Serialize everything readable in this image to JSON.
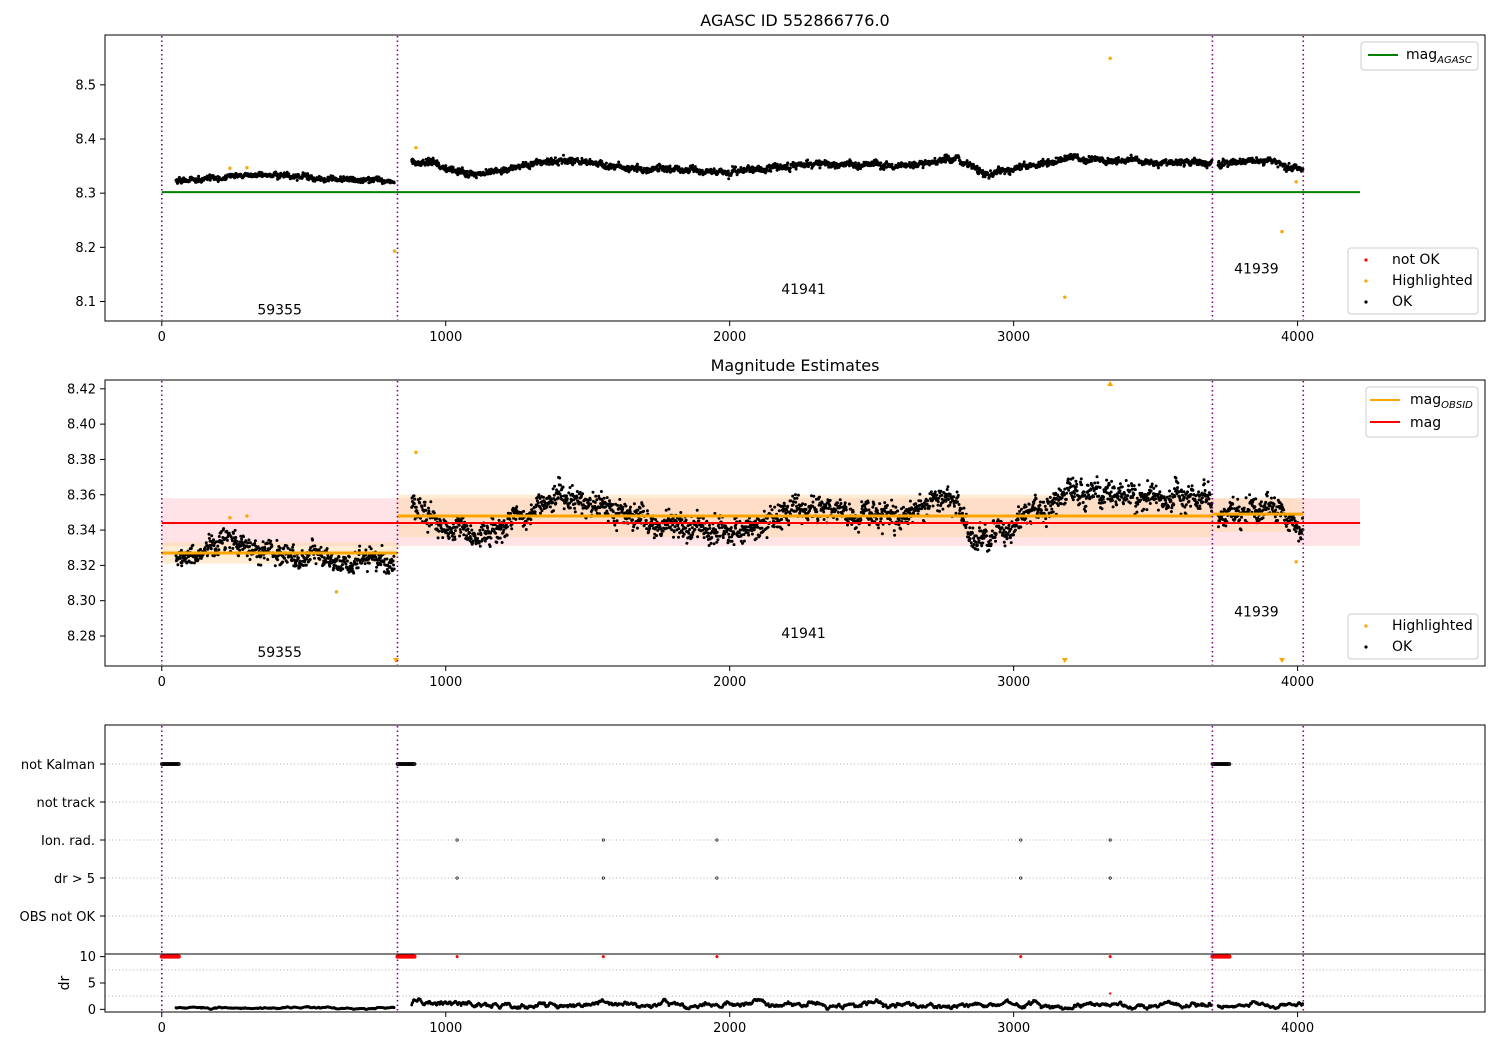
{
  "colors": {
    "ok": "#000000",
    "highlighted": "#ffa500",
    "not_ok": "#ff0000",
    "mag_agasc": "#008000",
    "mag_obsid": "#ffa500",
    "mag": "#ff0000",
    "mag_band": "#ffc0c8",
    "obsid_band": "#ffd9a8",
    "obsid_divider": "#800080",
    "flag_grid": "#b0b0b0"
  },
  "x_ticks": [
    0,
    1000,
    2000,
    3000,
    4000
  ],
  "obsid_boundaries": [
    0,
    830,
    3700,
    4020
  ],
  "panels": {
    "top": {
      "title": "AGASC ID 552866776.0",
      "xlim": [
        -200,
        4660
      ],
      "ylim": [
        8.064,
        8.592
      ],
      "y_ticks": [
        8.1,
        8.2,
        8.3,
        8.4,
        8.5
      ],
      "legend_upper": {
        "mag_agasc_main": "mag",
        "mag_agasc_sub": "AGASC"
      },
      "legend_lower": {
        "not_ok": "not OK",
        "highlighted": "Highlighted",
        "ok": "OK"
      },
      "obsid_labels": [
        {
          "text": "59355",
          "x": 415,
          "y": 8.076
        },
        {
          "text": "41941",
          "x": 2260,
          "y": 8.114
        },
        {
          "text": "41939",
          "x": 3855,
          "y": 8.152
        }
      ]
    },
    "middle": {
      "title": "Magnitude Estimates",
      "xlim": [
        -200,
        4660
      ],
      "ylim": [
        8.263,
        8.425
      ],
      "y_ticks": [
        8.28,
        8.3,
        8.32,
        8.34,
        8.36,
        8.38,
        8.4,
        8.42
      ],
      "legend_upper": {
        "mag_obsid_main": "mag",
        "mag_obsid_sub": "OBSID",
        "mag": "mag"
      },
      "legend_lower": {
        "highlighted": "Highlighted",
        "ok": "OK"
      },
      "obsid_labels": [
        {
          "text": "59355",
          "x": 415,
          "y": 8.268
        },
        {
          "text": "41941",
          "x": 2260,
          "y": 8.279
        },
        {
          "text": "41939",
          "x": 3855,
          "y": 8.291
        }
      ]
    },
    "flags": {
      "labels": [
        "not Kalman",
        "not track",
        "Ion. rad.",
        "dr > 5",
        "OBS not OK"
      ]
    },
    "dr": {
      "ylabel": "dr",
      "y_ticks": [
        0,
        5,
        10
      ]
    }
  },
  "chart_data": [
    {
      "type": "scatter",
      "title": "AGASC ID 552866776.0",
      "xlabel": "",
      "ylabel": "",
      "xlim": [
        -200,
        4660
      ],
      "ylim": [
        8.064,
        8.592
      ],
      "grid": false,
      "legend": "upper right and lower right",
      "lines": [
        {
          "name": "mag_AGASC",
          "y": 8.302,
          "x": [
            0,
            4220
          ]
        }
      ],
      "segments": [
        {
          "obsid": "59355",
          "x": [
            50,
            820
          ],
          "median": 8.327,
          "trend": [
            [
              50,
              8.322
            ],
            [
              300,
              8.335
            ],
            [
              500,
              8.33
            ],
            [
              700,
              8.323
            ],
            [
              820,
              8.322
            ]
          ],
          "spread": 0.005
        },
        {
          "obsid": "41941",
          "x": [
            880,
            3700
          ],
          "median": 8.35,
          "trend": [
            [
              880,
              8.36
            ],
            [
              1100,
              8.335
            ],
            [
              1400,
              8.362
            ],
            [
              1700,
              8.345
            ],
            [
              2000,
              8.34
            ],
            [
              2300,
              8.355
            ],
            [
              2600,
              8.35
            ],
            [
              2800,
              8.365
            ],
            [
              2900,
              8.335
            ],
            [
              3200,
              8.365
            ],
            [
              3400,
              8.36
            ],
            [
              3700,
              8.355
            ]
          ],
          "spread": 0.006
        },
        {
          "obsid": "41939",
          "x": [
            3720,
            4020
          ],
          "median": 8.352,
          "trend": [
            [
              3720,
              8.355
            ],
            [
              3900,
              8.358
            ],
            [
              4020,
              8.345
            ]
          ],
          "spread": 0.006
        }
      ],
      "highlighted_points": [
        [
          240,
          8.346
        ],
        [
          300,
          8.347
        ],
        [
          820,
          8.193
        ],
        [
          895,
          8.384
        ],
        [
          3180,
          8.108
        ],
        [
          3340,
          8.549
        ],
        [
          3945,
          8.229
        ],
        [
          3995,
          8.321
        ]
      ]
    },
    {
      "type": "scatter",
      "title": "Magnitude Estimates",
      "xlabel": "",
      "ylabel": "",
      "xlim": [
        -200,
        4660
      ],
      "ylim": [
        8.263,
        8.425
      ],
      "grid": false,
      "legend": "upper right and lower right",
      "lines": [
        {
          "name": "mag",
          "y": 8.344,
          "x": [
            0,
            4220
          ],
          "band": [
            8.331,
            8.358
          ]
        },
        {
          "name": "mag_OBSID 59355",
          "y": 8.327,
          "x": [
            0,
            830
          ],
          "band": [
            8.321,
            8.333
          ]
        },
        {
          "name": "mag_OBSID 41941",
          "y": 8.348,
          "x": [
            830,
            3700
          ],
          "band": [
            8.336,
            8.36
          ]
        },
        {
          "name": "mag_OBSID 41939",
          "y": 8.349,
          "x": [
            3700,
            4020
          ],
          "band": [
            8.339,
            8.358
          ]
        }
      ],
      "segments": [
        {
          "obsid": "59355",
          "x": [
            50,
            820
          ],
          "trend": [
            [
              50,
              8.322
            ],
            [
              250,
              8.335
            ],
            [
              420,
              8.325
            ],
            [
              600,
              8.322
            ],
            [
              820,
              8.322
            ]
          ],
          "spread": 0.006
        },
        {
          "obsid": "41941",
          "x": [
            880,
            3700
          ],
          "trend": [
            [
              880,
              8.355
            ],
            [
              1100,
              8.333
            ],
            [
              1400,
              8.36
            ],
            [
              1700,
              8.345
            ],
            [
              2000,
              8.338
            ],
            [
              2300,
              8.352
            ],
            [
              2600,
              8.348
            ],
            [
              2800,
              8.36
            ],
            [
              2870,
              8.332
            ],
            [
              3200,
              8.36
            ],
            [
              3400,
              8.36
            ],
            [
              3700,
              8.355
            ]
          ],
          "spread": 0.007
        },
        {
          "obsid": "41939",
          "x": [
            3720,
            4020
          ],
          "trend": [
            [
              3720,
              8.348
            ],
            [
              3900,
              8.354
            ],
            [
              4020,
              8.342
            ]
          ],
          "spread": 0.006
        }
      ],
      "highlighted_points": [
        [
          240,
          8.347
        ],
        [
          300,
          8.348
        ],
        [
          615,
          8.305
        ],
        [
          895,
          8.384
        ],
        [
          3995,
          8.322
        ]
      ],
      "offscale_markers": [
        {
          "x": 825,
          "direction": "down"
        },
        {
          "x": 3180,
          "direction": "down"
        },
        {
          "x": 3340,
          "direction": "up"
        },
        {
          "x": 3945,
          "direction": "down"
        }
      ]
    },
    {
      "type": "scatter",
      "title": "",
      "xlabel": "",
      "ylabel": "",
      "xlim": [
        -200,
        4660
      ],
      "categories": [
        "not Kalman",
        "not track",
        "Ion. rad.",
        "dr > 5",
        "OBS not OK"
      ],
      "grid": true,
      "flag_points": {
        "not Kalman": [
          [
            0,
            60
          ],
          [
            830,
            890
          ],
          [
            3700,
            3760
          ]
        ],
        "Ion. rad.": [
          1040,
          1555,
          1955,
          3025,
          3340
        ],
        "dr > 5": [
          1040,
          1555,
          1955,
          3025,
          3340
        ]
      }
    },
    {
      "type": "scatter",
      "title": "",
      "xlabel": "",
      "ylabel": "dr",
      "xlim": [
        -200,
        4660
      ],
      "ylim": [
        -0.5,
        10.5
      ],
      "grid": false,
      "ok_segments": [
        {
          "x": [
            50,
            820
          ],
          "level": 0.3,
          "spread": 0.15
        },
        {
          "x": [
            880,
            3700
          ],
          "level": 0.8,
          "spread": 0.5
        },
        {
          "x": [
            3720,
            4020
          ],
          "level": 0.8,
          "spread": 0.4
        }
      ],
      "not_ok_points": {
        "clusters_at_10": [
          [
            0,
            60
          ],
          [
            830,
            890
          ],
          [
            3700,
            3760
          ]
        ],
        "singles_at_10": [
          1040,
          1555,
          1955,
          3025,
          3340
        ],
        "other": [
          [
            3340,
            3
          ]
        ]
      }
    }
  ]
}
